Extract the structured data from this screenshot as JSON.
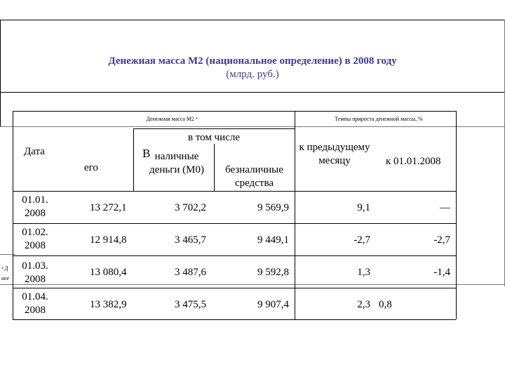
{
  "title": "Денежная масса М2 (национальное определение) в 2008 году",
  "subtitle": "(млрд. руб.)",
  "table": {
    "header_group_1": "Денежная масса М2 ¹",
    "header_group_2": "Темпы прироста денежной массы, %",
    "col_date": "Дата",
    "col_total": "его",
    "col_in_that_number": "в том числе",
    "col_cash_prefix": "В",
    "col_cash": "наличные деньги (М0)",
    "col_noncash": "безналичные средства",
    "col_prev_month": "к предыдущему месяцу",
    "col_since_jan": "к 01.01.2008",
    "rows": [
      {
        "date": "01.01. 2008",
        "total": "13 272,1",
        "cash": "3 702,2",
        "noncash": "9 569,9",
        "prev": "9,1",
        "jan": "—"
      },
      {
        "date": "01.02. 2008",
        "total": "12 914,8",
        "cash": "3 465,7",
        "noncash": "9 449,1",
        "prev": "-2,7",
        "jan": "-2,7"
      },
      {
        "date": "01.03. 2008",
        "total": "13 080,4",
        "cash": "3 487,6",
        "noncash": "9 592,8",
        "prev": "1,3",
        "jan": "-1,4"
      },
      {
        "date": "01.04. 2008",
        "total": "13 382,9",
        "cash": "3 475,5",
        "noncash": "9 907,4",
        "prev": "2,3",
        "jan": "0,8"
      }
    ]
  },
  "footnote_fragment_1": "¹ Д",
  "footnote_fragment_2": "нее"
}
